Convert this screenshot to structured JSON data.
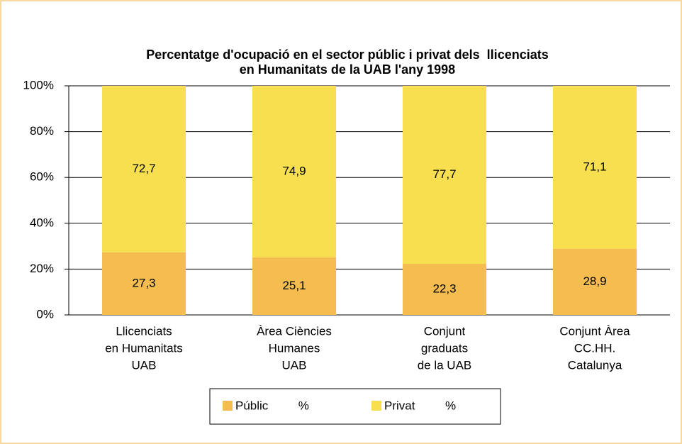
{
  "chart_data": {
    "type": "stacked_bar",
    "title": [
      "Percentatge d'ocupació en el sector públic i privat dels  llicenciats",
      "en Humanitats de la UAB l'any 1998"
    ],
    "categories": [
      [
        "Llicenciats",
        "en Humanitats",
        "UAB"
      ],
      [
        "Àrea Ciències",
        "Humanes",
        "UAB"
      ],
      [
        "Conjunt",
        "graduats",
        "de la UAB"
      ],
      [
        "Conjunt Àrea",
        "CC.HH.",
        "Catalunya"
      ]
    ],
    "series": [
      {
        "name": "Públic         %",
        "color": "#f5bd50",
        "values": [
          27.3,
          25.1,
          22.3,
          28.9
        ],
        "value_labels": [
          "27,3",
          "25,1",
          "22,3",
          "28,9"
        ]
      },
      {
        "name": "Privat         %",
        "color": "#f7df4f",
        "values": [
          72.7,
          74.9,
          77.7,
          71.1
        ],
        "value_labels": [
          "72,7",
          "74,9",
          "77,7",
          "71,1"
        ]
      }
    ],
    "ylim": [
      0,
      100
    ],
    "yticks": [
      {
        "value": 0,
        "label": "0%"
      },
      {
        "value": 20,
        "label": "20%"
      },
      {
        "value": 40,
        "label": "40%"
      },
      {
        "value": 60,
        "label": "60%"
      },
      {
        "value": 80,
        "label": "80%"
      },
      {
        "value": 100,
        "label": "100%"
      }
    ],
    "grid": true,
    "legend": "bottom"
  }
}
